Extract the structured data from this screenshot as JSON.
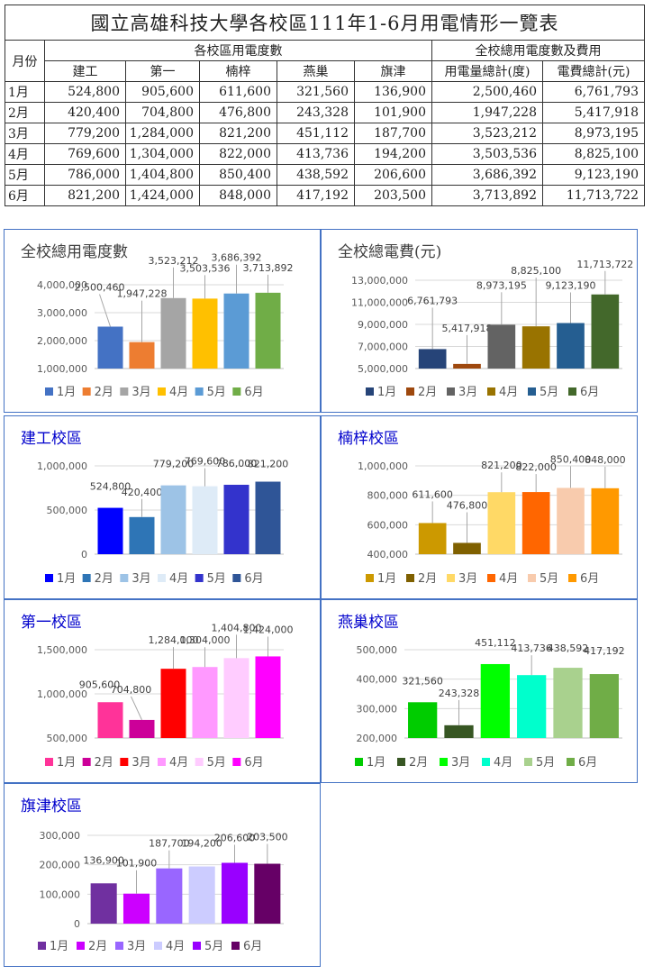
{
  "table": {
    "title": "國立高雄科技大學各校區111年1-6月用電情形一覽表",
    "month_header": "月份",
    "campus_group_header": "各校區用電度數",
    "total_group_header": "全校總用電度數及費用",
    "columns": [
      "建工",
      "第一",
      "楠梓",
      "燕巢",
      "旗津",
      "用電量總計(度)",
      "電費總計(元)"
    ],
    "rows": [
      {
        "month": "1月",
        "values": [
          "524,800",
          "905,600",
          "611,600",
          "321,560",
          "136,900",
          "2,500,460",
          "6,761,793"
        ]
      },
      {
        "month": "2月",
        "values": [
          "420,400",
          "704,800",
          "476,800",
          "243,328",
          "101,900",
          "1,947,228",
          "5,417,918"
        ]
      },
      {
        "month": "3月",
        "values": [
          "779,200",
          "1,284,000",
          "821,200",
          "451,112",
          "187,700",
          "3,523,212",
          "8,973,195"
        ]
      },
      {
        "month": "4月",
        "values": [
          "769,600",
          "1,304,000",
          "822,000",
          "413,736",
          "194,200",
          "3,503,536",
          "8,825,100"
        ]
      },
      {
        "month": "5月",
        "values": [
          "786,000",
          "1,404,800",
          "850,400",
          "438,592",
          "206,600",
          "3,686,392",
          "9,123,190"
        ]
      },
      {
        "month": "6月",
        "values": [
          "821,200",
          "1,424,000",
          "848,000",
          "417,192",
          "203,500",
          "3,713,892",
          "11,713,722"
        ]
      }
    ]
  },
  "chart_data": [
    {
      "id": "total-kwh",
      "type": "bar",
      "title": "全校總用電度數",
      "title_color": "#404040",
      "categories": [
        "1月",
        "2月",
        "3月",
        "4月",
        "5月",
        "6月"
      ],
      "values": [
        2500460,
        1947228,
        3523212,
        3503536,
        3686392,
        3713892
      ],
      "ylim": [
        1000000,
        4000000
      ],
      "yticks": [
        1000000,
        2000000,
        3000000,
        4000000
      ],
      "colors": [
        "#4472c4",
        "#ed7d31",
        "#a5a5a5",
        "#ffc000",
        "#5b9bd5",
        "#70ad47"
      ],
      "xlabel": "",
      "ylabel": "",
      "legend": "bottom"
    },
    {
      "id": "total-cost",
      "type": "bar",
      "title": "全校總電費(元)",
      "title_color": "#404040",
      "categories": [
        "1月",
        "2月",
        "3月",
        "4月",
        "5月",
        "6月"
      ],
      "values": [
        6761793,
        5417918,
        8973195,
        8825100,
        9123190,
        11713722
      ],
      "ylim": [
        5000000,
        13000000
      ],
      "yticks": [
        5000000,
        7000000,
        9000000,
        11000000,
        13000000
      ],
      "colors": [
        "#264478",
        "#9e480e",
        "#636363",
        "#997300",
        "#255e91",
        "#43682b"
      ],
      "xlabel": "",
      "ylabel": "",
      "legend": "bottom"
    },
    {
      "id": "jiangong",
      "type": "bar",
      "title": "建工校區",
      "title_color": "#0000cc",
      "categories": [
        "1月",
        "2月",
        "3月",
        "4月",
        "5月",
        "6月"
      ],
      "values": [
        524800,
        420400,
        779200,
        769600,
        786000,
        821200
      ],
      "ylim": [
        0,
        1000000
      ],
      "yticks": [
        0,
        500000,
        1000000
      ],
      "colors": [
        "#0000ff",
        "#2e75b6",
        "#9dc3e6",
        "#deebf7",
        "#3333cc",
        "#2f5597"
      ],
      "xlabel": "",
      "ylabel": "",
      "legend": "bottom"
    },
    {
      "id": "nanzi",
      "type": "bar",
      "title": "楠梓校區",
      "title_color": "#0000cc",
      "categories": [
        "1月",
        "2月",
        "3月",
        "4月",
        "5月",
        "6月"
      ],
      "values": [
        611600,
        476800,
        821200,
        822000,
        850400,
        848000
      ],
      "ylim": [
        400000,
        1000000
      ],
      "yticks": [
        400000,
        600000,
        800000,
        1000000
      ],
      "colors": [
        "#cc9900",
        "#7f6000",
        "#ffd966",
        "#ff6600",
        "#f8cbad",
        "#ff9900"
      ],
      "xlabel": "",
      "ylabel": "",
      "legend": "bottom"
    },
    {
      "id": "first",
      "type": "bar",
      "title": "第一校區",
      "title_color": "#0000cc",
      "categories": [
        "1月",
        "2月",
        "3月",
        "4月",
        "5月",
        "6月"
      ],
      "values": [
        905600,
        704800,
        1284000,
        1304000,
        1404800,
        1424000
      ],
      "ylim": [
        500000,
        1500000
      ],
      "yticks": [
        500000,
        1000000,
        1500000
      ],
      "colors": [
        "#ff3399",
        "#cc0099",
        "#ff0000",
        "#ff99ff",
        "#ffccff",
        "#ff00ff"
      ],
      "xlabel": "",
      "ylabel": "",
      "legend": "bottom"
    },
    {
      "id": "yanchao",
      "type": "bar",
      "title": "燕巢校區",
      "title_color": "#0000cc",
      "categories": [
        "1月",
        "2月",
        "3月",
        "4月",
        "5月",
        "6月"
      ],
      "values": [
        321560,
        243328,
        451112,
        413736,
        438592,
        417192
      ],
      "ylim": [
        200000,
        500000
      ],
      "yticks": [
        200000,
        300000,
        400000,
        500000
      ],
      "colors": [
        "#00cc00",
        "#375623",
        "#00ff00",
        "#00ffcc",
        "#a9d18e",
        "#70ad47"
      ],
      "xlabel": "",
      "ylabel": "",
      "legend": "bottom"
    },
    {
      "id": "qijin",
      "type": "bar",
      "title": "旗津校區",
      "title_color": "#0000cc",
      "categories": [
        "1月",
        "2月",
        "3月",
        "4月",
        "5月",
        "6月"
      ],
      "values": [
        136900,
        101900,
        187700,
        194200,
        206600,
        203500
      ],
      "ylim": [
        0,
        300000
      ],
      "yticks": [
        0,
        100000,
        200000,
        300000
      ],
      "colors": [
        "#7030a0",
        "#cc00ff",
        "#9966ff",
        "#ccccff",
        "#9900ff",
        "#660066"
      ],
      "xlabel": "",
      "ylabel": "",
      "legend": "bottom"
    }
  ]
}
